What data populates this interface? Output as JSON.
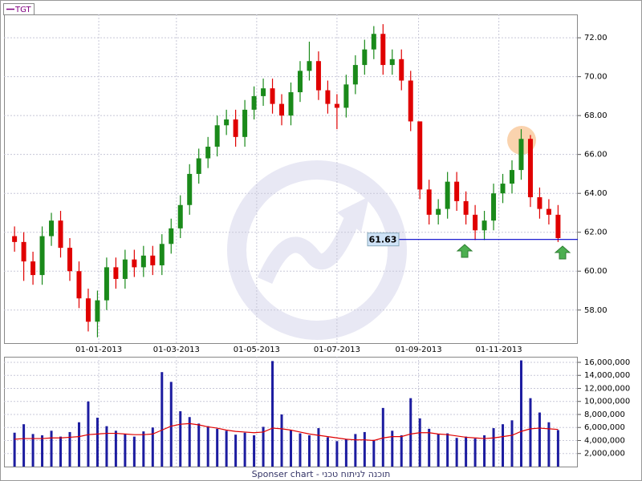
{
  "chart_data": [
    {
      "type": "candlestick",
      "name": "TGT",
      "legend_color": "#800080",
      "up_color": "#1a8a1a",
      "down_color": "#e00000",
      "x": [
        "2012-10-29",
        "2012-11-05",
        "2012-11-12",
        "2012-11-19",
        "2012-11-26",
        "2012-12-03",
        "2012-12-10",
        "2012-12-17",
        "2012-12-24",
        "2012-12-31",
        "2013-01-07",
        "2013-01-14",
        "2013-01-21",
        "2013-01-28",
        "2013-02-04",
        "2013-02-11",
        "2013-02-18",
        "2013-02-25",
        "2013-03-04",
        "2013-03-11",
        "2013-03-18",
        "2013-03-25",
        "2013-04-01",
        "2013-04-08",
        "2013-04-15",
        "2013-04-22",
        "2013-04-29",
        "2013-05-06",
        "2013-05-13",
        "2013-05-20",
        "2013-05-27",
        "2013-06-03",
        "2013-06-10",
        "2013-06-17",
        "2013-06-24",
        "2013-07-01",
        "2013-07-08",
        "2013-07-15",
        "2013-07-22",
        "2013-07-29",
        "2013-08-05",
        "2013-08-12",
        "2013-08-19",
        "2013-08-26",
        "2013-09-02",
        "2013-09-09",
        "2013-09-16",
        "2013-09-23",
        "2013-09-30",
        "2013-10-07",
        "2013-10-14",
        "2013-10-21",
        "2013-10-28",
        "2013-11-04",
        "2013-11-11",
        "2013-11-18",
        "2013-11-25",
        "2013-12-02",
        "2013-12-09",
        "2013-12-16"
      ],
      "open": [
        61.8,
        61.5,
        60.5,
        59.8,
        61.8,
        62.6,
        61.2,
        60.0,
        58.6,
        57.4,
        58.5,
        60.2,
        59.6,
        60.6,
        60.2,
        60.8,
        60.3,
        61.4,
        62.2,
        63.4,
        65.0,
        65.8,
        66.4,
        67.5,
        67.8,
        66.9,
        68.3,
        69.0,
        69.4,
        68.6,
        68.0,
        69.2,
        70.3,
        70.8,
        69.3,
        68.6,
        68.4,
        69.6,
        70.6,
        71.4,
        72.2,
        70.6,
        70.9,
        69.8,
        67.7,
        64.2,
        62.9,
        63.2,
        64.6,
        63.6,
        62.9,
        62.1,
        62.6,
        64.0,
        64.5,
        65.2,
        66.8,
        63.8,
        63.2,
        62.9
      ],
      "high": [
        62.3,
        62.0,
        61.0,
        62.3,
        63.0,
        63.1,
        61.7,
        60.5,
        59.1,
        59.0,
        60.7,
        60.7,
        61.1,
        61.1,
        61.3,
        61.3,
        61.9,
        62.7,
        63.9,
        65.5,
        66.3,
        66.9,
        68.0,
        68.3,
        68.3,
        68.8,
        69.5,
        69.9,
        69.9,
        69.1,
        69.7,
        70.8,
        71.8,
        71.3,
        69.8,
        69.1,
        70.1,
        71.1,
        71.9,
        72.6,
        72.7,
        71.4,
        71.4,
        70.3,
        67.7,
        64.7,
        63.7,
        65.1,
        65.1,
        64.1,
        63.4,
        63.1,
        64.5,
        65.0,
        65.7,
        67.3,
        67.0,
        64.3,
        63.7,
        63.4
      ],
      "low": [
        61.0,
        59.5,
        59.3,
        59.3,
        61.3,
        60.7,
        59.5,
        58.1,
        56.9,
        56.6,
        58.0,
        59.1,
        59.1,
        59.7,
        59.7,
        59.8,
        59.8,
        60.9,
        61.7,
        62.9,
        64.5,
        65.3,
        65.9,
        67.0,
        66.4,
        66.4,
        67.8,
        68.5,
        68.1,
        67.5,
        67.5,
        68.7,
        69.8,
        68.8,
        68.1,
        67.3,
        67.9,
        69.1,
        70.1,
        70.9,
        70.1,
        70.1,
        69.3,
        67.2,
        63.7,
        62.4,
        62.4,
        62.7,
        63.1,
        62.4,
        61.6,
        61.6,
        62.1,
        63.5,
        64.0,
        64.7,
        63.3,
        62.7,
        62.4,
        61.5
      ],
      "close": [
        61.5,
        60.5,
        59.8,
        61.8,
        62.6,
        61.2,
        60.0,
        58.6,
        57.4,
        58.5,
        60.2,
        59.6,
        60.6,
        60.2,
        60.8,
        60.3,
        61.4,
        62.2,
        63.4,
        65.0,
        65.8,
        66.4,
        67.5,
        67.8,
        66.9,
        68.3,
        69.0,
        69.4,
        68.6,
        68.0,
        69.2,
        70.3,
        70.8,
        69.3,
        68.6,
        68.4,
        69.6,
        70.6,
        71.4,
        72.2,
        70.6,
        70.9,
        69.8,
        67.7,
        64.2,
        62.9,
        63.2,
        64.6,
        63.6,
        62.9,
        62.1,
        62.6,
        64.0,
        64.5,
        65.2,
        66.8,
        63.8,
        63.2,
        62.9,
        61.7
      ],
      "xlim": [
        "2012-10-21",
        "2013-12-31"
      ],
      "xticks": [
        {
          "value": "2013-01-01",
          "label": "01-01-2013"
        },
        {
          "value": "2013-03-01",
          "label": "01-03-2013"
        },
        {
          "value": "2013-05-01",
          "label": "01-05-2013"
        },
        {
          "value": "2013-07-01",
          "label": "01-07-2013"
        },
        {
          "value": "2013-09-01",
          "label": "01-09-2013"
        },
        {
          "value": "2013-11-01",
          "label": "01-11-2013"
        }
      ],
      "ylim": [
        56.3,
        73.2
      ],
      "yticks": [
        {
          "value": 58,
          "label": "58.00"
        },
        {
          "value": 60,
          "label": "60.00"
        },
        {
          "value": 62,
          "label": "62.00"
        },
        {
          "value": 64,
          "label": "64.00"
        },
        {
          "value": 66,
          "label": "66.00"
        },
        {
          "value": 68,
          "label": "68.00"
        },
        {
          "value": 70,
          "label": "70.00"
        },
        {
          "value": 72,
          "label": "72.00"
        }
      ],
      "grid": true,
      "hline": 61.63,
      "hline_color": "#0000cc"
    },
    {
      "type": "bar",
      "color": "#1c1ca0",
      "values": [
        5200000,
        6500000,
        5000000,
        4800000,
        5500000,
        4600000,
        5300000,
        6800000,
        10000000,
        7500000,
        6200000,
        5500000,
        5000000,
        4600000,
        5400000,
        6000000,
        14500000,
        13000000,
        8500000,
        7600000,
        6600000,
        6200000,
        5800000,
        5500000,
        4900000,
        5200000,
        4800000,
        6100000,
        16200000,
        8000000,
        5600000,
        5100000,
        4800000,
        5900000,
        4500000,
        3900000,
        4200000,
        5000000,
        5300000,
        4100000,
        9000000,
        5500000,
        4800000,
        10500000,
        7400000,
        5800000,
        5000000,
        5100000,
        4400000,
        4600000,
        4300000,
        4800000,
        5900000,
        6500000,
        7100000,
        16300000,
        10500000,
        8300000,
        6800000,
        5600000
      ],
      "ma": [
        4200000,
        4300000,
        4300000,
        4300000,
        4400000,
        4400000,
        4500000,
        4600000,
        4900000,
        5000000,
        5100000,
        5100000,
        5000000,
        4900000,
        4900000,
        5000000,
        5600000,
        6200000,
        6500000,
        6600000,
        6400000,
        6100000,
        5900000,
        5600000,
        5400000,
        5300000,
        5200000,
        5300000,
        5900000,
        5800000,
        5600000,
        5300000,
        5000000,
        4800000,
        4600000,
        4400000,
        4200000,
        4100000,
        4100000,
        4000000,
        4400000,
        4600000,
        4600000,
        5000000,
        5200000,
        5200000,
        5000000,
        4900000,
        4700000,
        4500000,
        4400000,
        4300000,
        4400000,
        4600000,
        4800000,
        5400000,
        5800000,
        5900000,
        5800000,
        5700000
      ],
      "ma_color": "#e00000",
      "ylim": [
        0,
        16860000
      ],
      "yticks": [
        {
          "value": 2000000,
          "label": "2,000,000"
        },
        {
          "value": 4000000,
          "label": "4,000,000"
        },
        {
          "value": 6000000,
          "label": "6,000,000"
        },
        {
          "value": 8000000,
          "label": "8,000,000"
        },
        {
          "value": 10000000,
          "label": "10,000,000"
        },
        {
          "value": 12000000,
          "label": "12,000,000"
        },
        {
          "value": 14000000,
          "label": "14,000,000"
        },
        {
          "value": 16000000,
          "label": "16,000,000"
        }
      ],
      "grid": true
    }
  ],
  "footer": "Sponser chart - תוכנה לניתוח טכני"
}
